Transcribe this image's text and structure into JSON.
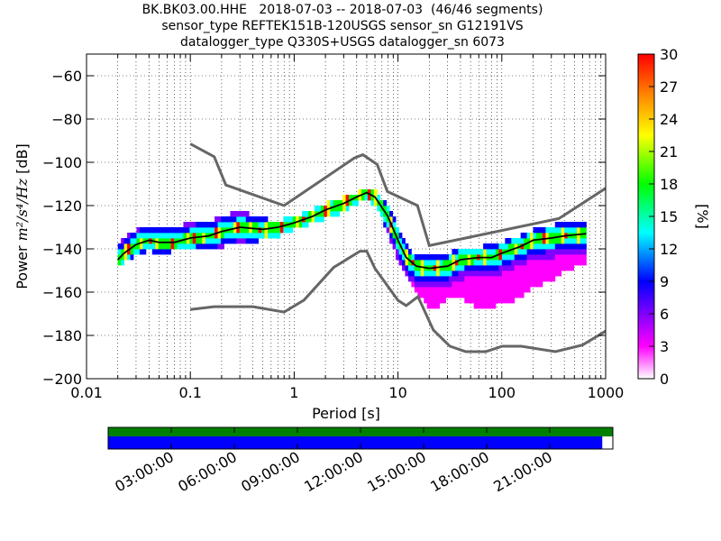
{
  "header": {
    "line1": "BK.BK03.00.HHE   2018-07-03 -- 2018-07-03  (46/46 segments)",
    "line2": "sensor_type REFTEK151B-120USGS sensor_sn G12191VS",
    "line3": "datalogger_type Q330S+USGS datalogger_sn 6073"
  },
  "chart_data": {
    "type": "heatmap",
    "xlabel": "Period [s]",
    "ylabel_prefix": "Power",
    "ylabel_units": "m²/s⁴/Hz",
    "ylabel_suffix": "[dB]",
    "x_scale": "log",
    "xlim": [
      0.01,
      1000
    ],
    "ylim": [
      -200,
      -50
    ],
    "x_ticks": [
      0.01,
      0.1,
      1,
      10,
      100,
      1000
    ],
    "x_tick_labels": [
      "0.01",
      "0.1",
      "1",
      "10",
      "100",
      "1000"
    ],
    "y_ticks": [
      -200,
      -180,
      -160,
      -140,
      -120,
      -100,
      -80,
      -60
    ],
    "y_tick_labels": [
      "−200",
      "−180",
      "−160",
      "−140",
      "−120",
      "−100",
      "−80",
      "−60"
    ],
    "grid": "dotted",
    "colorbar": {
      "label": "[%]",
      "range": [
        0,
        30
      ],
      "ticks": [
        0,
        3,
        6,
        9,
        12,
        15,
        18,
        21,
        24,
        27,
        30
      ],
      "colors": [
        "#ffffff",
        "#ff00ff",
        "#8000ff",
        "#0000ff",
        "#00ffff",
        "#00ff00",
        "#ffff00",
        "#ff8000",
        "#ff0000"
      ]
    },
    "noise_model_high": {
      "name": "NHNM",
      "color": "#666666",
      "points": [
        [
          0.1,
          -91.5
        ],
        [
          0.17,
          -97.4
        ],
        [
          0.22,
          -110.5
        ],
        [
          0.8,
          -120
        ],
        [
          3.8,
          -98
        ],
        [
          4.6,
          -96.5
        ],
        [
          6.3,
          -101
        ],
        [
          7.9,
          -113.5
        ],
        [
          15.4,
          -120
        ],
        [
          20,
          -138.5
        ],
        [
          354.8,
          -126
        ],
        [
          1000,
          -112
        ]
      ]
    },
    "noise_model_low": {
      "name": "NLNM",
      "color": "#666666",
      "points": [
        [
          0.1,
          -168
        ],
        [
          0.17,
          -166.7
        ],
        [
          0.4,
          -166.7
        ],
        [
          0.8,
          -169.2
        ],
        [
          1.24,
          -163.7
        ],
        [
          2.4,
          -148.6
        ],
        [
          4.3,
          -141.1
        ],
        [
          5,
          -141.1
        ],
        [
          6,
          -149
        ],
        [
          10,
          -163.8
        ],
        [
          12,
          -166.2
        ],
        [
          15.6,
          -162.1
        ],
        [
          21.9,
          -177.5
        ],
        [
          31.6,
          -185
        ],
        [
          45,
          -187.5
        ],
        [
          70,
          -187.5
        ],
        [
          101,
          -185
        ],
        [
          154,
          -185
        ],
        [
          328,
          -187.5
        ],
        [
          600,
          -184.4
        ],
        [
          1000,
          -178
        ]
      ]
    },
    "mode_curve": {
      "color": "#000000",
      "points": [
        [
          0.02,
          -145
        ],
        [
          0.023,
          -142
        ],
        [
          0.03,
          -138
        ],
        [
          0.04,
          -136
        ],
        [
          0.05,
          -137
        ],
        [
          0.07,
          -137
        ],
        [
          0.1,
          -135
        ],
        [
          0.15,
          -134
        ],
        [
          0.2,
          -132
        ],
        [
          0.3,
          -130
        ],
        [
          0.5,
          -131
        ],
        [
          0.7,
          -130
        ],
        [
          1,
          -128
        ],
        [
          1.5,
          -125
        ],
        [
          2,
          -122
        ],
        [
          3,
          -119
        ],
        [
          4,
          -116
        ],
        [
          5,
          -114
        ],
        [
          6,
          -116
        ],
        [
          8,
          -125
        ],
        [
          10,
          -136
        ],
        [
          12,
          -144
        ],
        [
          15,
          -148
        ],
        [
          20,
          -149
        ],
        [
          30,
          -148
        ],
        [
          40,
          -145
        ],
        [
          60,
          -144
        ],
        [
          80,
          -144
        ],
        [
          100,
          -142
        ],
        [
          150,
          -139
        ],
        [
          200,
          -136
        ],
        [
          300,
          -135
        ],
        [
          400,
          -134
        ],
        [
          650,
          -133
        ]
      ]
    },
    "psd_spread": [
      [
        0.02,
        -147,
        -138
      ],
      [
        0.025,
        -146,
        -133
      ],
      [
        0.03,
        -142,
        -131
      ],
      [
        0.04,
        -141,
        -129
      ],
      [
        0.05,
        -142,
        -130
      ],
      [
        0.07,
        -141,
        -130
      ],
      [
        0.1,
        -140,
        -128
      ],
      [
        0.15,
        -140,
        -127
      ],
      [
        0.2,
        -139,
        -125
      ],
      [
        0.3,
        -137,
        -122
      ],
      [
        0.5,
        -136,
        -126
      ],
      [
        0.7,
        -134,
        -127
      ],
      [
        1,
        -131,
        -125
      ],
      [
        1.5,
        -128,
        -122
      ],
      [
        2,
        -126,
        -119
      ],
      [
        3,
        -123,
        -116
      ],
      [
        4,
        -119,
        -114
      ],
      [
        5,
        -117,
        -112
      ],
      [
        6,
        -120,
        -113
      ],
      [
        8,
        -132,
        -120
      ],
      [
        10,
        -146,
        -130
      ],
      [
        12,
        -153,
        -138
      ],
      [
        15,
        -160,
        -143
      ],
      [
        20,
        -168,
        -143
      ],
      [
        25,
        -167,
        -143
      ],
      [
        30,
        -162,
        -142
      ],
      [
        40,
        -162,
        -140
      ],
      [
        60,
        -168,
        -139
      ],
      [
        80,
        -167,
        -138
      ],
      [
        100,
        -165,
        -137
      ],
      [
        150,
        -163,
        -134
      ],
      [
        200,
        -158,
        -131
      ],
      [
        300,
        -155,
        -129
      ],
      [
        400,
        -150,
        -128
      ],
      [
        650,
        -147,
        -127
      ]
    ],
    "timeline": {
      "labels": [
        "03:00:00",
        "06:00:00",
        "09:00:00",
        "12:00:00",
        "15:00:00",
        "18:00:00",
        "21:00:00"
      ],
      "top_color": "#008000",
      "bottom_color": "#0000ff",
      "coverage_fraction": 0.979
    }
  }
}
